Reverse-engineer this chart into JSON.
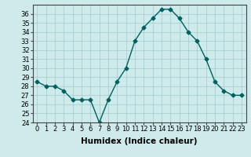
{
  "x": [
    0,
    1,
    2,
    3,
    4,
    5,
    6,
    7,
    8,
    9,
    10,
    11,
    12,
    13,
    14,
    15,
    16,
    17,
    18,
    19,
    20,
    21,
    22,
    23
  ],
  "y": [
    28.5,
    28.0,
    28.0,
    27.5,
    26.5,
    26.5,
    26.5,
    24.0,
    26.5,
    28.5,
    30.0,
    33.0,
    34.5,
    35.5,
    36.5,
    36.5,
    35.5,
    34.0,
    33.0,
    31.0,
    28.5,
    27.5,
    27.0,
    27.0
  ],
  "line_color": "#006060",
  "marker": "D",
  "marker_size": 2.5,
  "line_width": 1.0,
  "xlabel": "Humidex (Indice chaleur)",
  "ylim": [
    24,
    37
  ],
  "xlim": [
    -0.5,
    23.5
  ],
  "yticks": [
    24,
    25,
    26,
    27,
    28,
    29,
    30,
    31,
    32,
    33,
    34,
    35,
    36
  ],
  "xticks": [
    0,
    1,
    2,
    3,
    4,
    5,
    6,
    7,
    8,
    9,
    10,
    11,
    12,
    13,
    14,
    15,
    16,
    17,
    18,
    19,
    20,
    21,
    22,
    23
  ],
  "bg_color": "#ceeaea",
  "grid_color": "#a0cccc",
  "label_fontsize": 7.5,
  "tick_fontsize": 6.0
}
